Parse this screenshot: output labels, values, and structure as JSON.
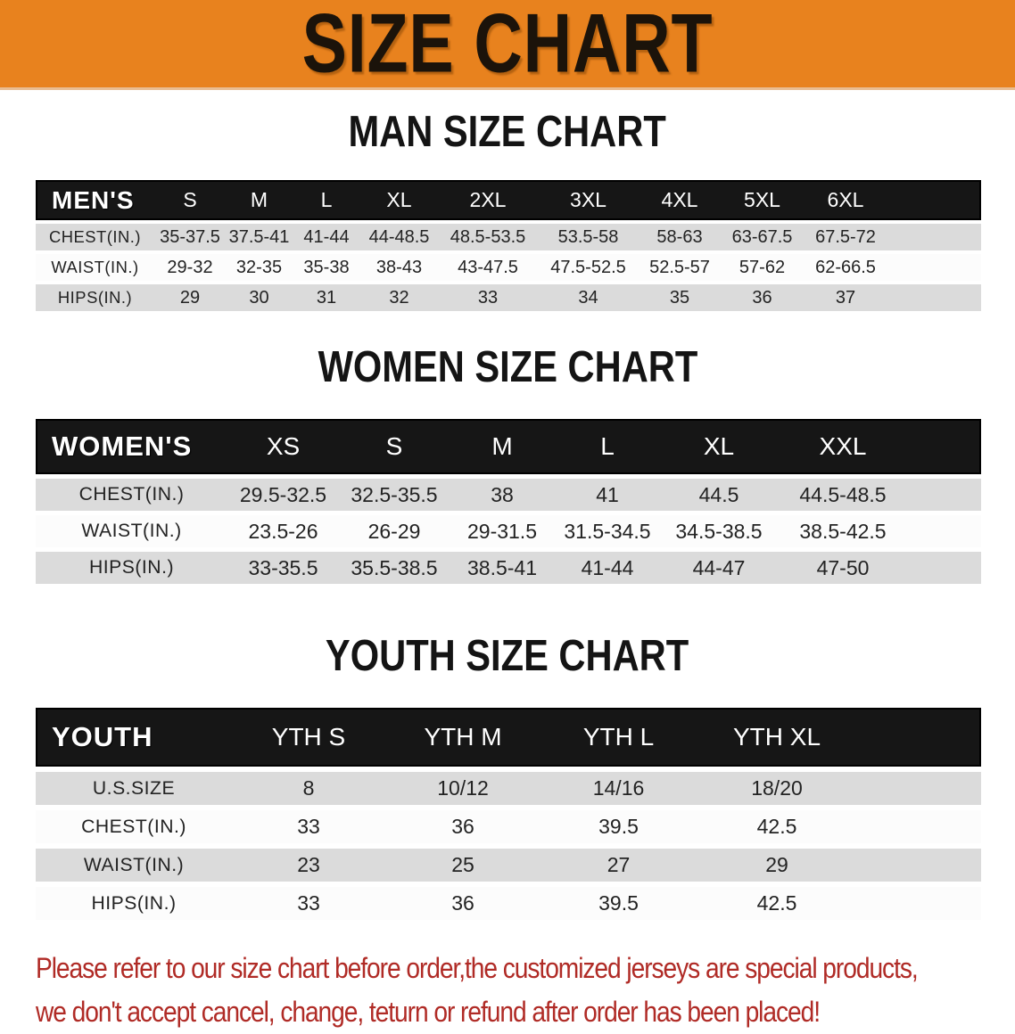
{
  "banner": {
    "title": "SIZE CHART",
    "bg_color": "#E8821E",
    "text_color": "#1B130A"
  },
  "sections": [
    {
      "heading": "MAN SIZE CHART",
      "table": {
        "header": {
          "label": "MEN'S",
          "sizes": [
            "S",
            "M",
            "L",
            "XL",
            "2XL",
            "3XL",
            "4XL",
            "5XL",
            "6XL"
          ]
        },
        "rows": [
          {
            "label": "CHEST(IN.)",
            "values": [
              "35-37.5",
              "37.5-41",
              "41-44",
              "44-48.5",
              "48.5-53.5",
              "53.5-58",
              "58-63",
              "63-67.5",
              "67.5-72"
            ]
          },
          {
            "label": "WAIST(IN.)",
            "values": [
              "29-32",
              "32-35",
              "35-38",
              "38-43",
              "43-47.5",
              "47.5-52.5",
              "52.5-57",
              "57-62",
              "62-66.5"
            ]
          },
          {
            "label": "HIPS(IN.)",
            "values": [
              "29",
              "30",
              "31",
              "32",
              "33",
              "34",
              "35",
              "36",
              "37"
            ]
          }
        ]
      }
    },
    {
      "heading": "WOMEN SIZE CHART",
      "table": {
        "header": {
          "label": "WOMEN'S",
          "sizes": [
            "XS",
            "S",
            "M",
            "L",
            "XL",
            "XXL"
          ]
        },
        "rows": [
          {
            "label": "CHEST(IN.)",
            "values": [
              "29.5-32.5",
              "32.5-35.5",
              "38",
              "41",
              "44.5",
              "44.5-48.5"
            ]
          },
          {
            "label": "WAIST(IN.)",
            "values": [
              "23.5-26",
              "26-29",
              "29-31.5",
              "31.5-34.5",
              "34.5-38.5",
              "38.5-42.5"
            ]
          },
          {
            "label": "HIPS(IN.)",
            "values": [
              "33-35.5",
              "35.5-38.5",
              "38.5-41",
              "41-44",
              "44-47",
              "47-50"
            ]
          }
        ]
      }
    },
    {
      "heading": "YOUTH SIZE CHART",
      "table": {
        "header": {
          "label": "YOUTH",
          "sizes": [
            "YTH S",
            "YTH M",
            "YTH L",
            "YTH XL"
          ]
        },
        "rows": [
          {
            "label": "U.S.SIZE",
            "values": [
              "8",
              "10/12",
              "14/16",
              "18/20"
            ]
          },
          {
            "label": "CHEST(IN.)",
            "values": [
              "33",
              "36",
              "39.5",
              "42.5"
            ]
          },
          {
            "label": "WAIST(IN.)",
            "values": [
              "23",
              "25",
              "27",
              "29"
            ]
          },
          {
            "label": "HIPS(IN.)",
            "values": [
              "33",
              "36",
              "39.5",
              "42.5"
            ]
          }
        ]
      }
    }
  ],
  "footer": {
    "line1": "Please refer to our size chart before order,the customized jerseys are special products,",
    "line2": "we don't accept cancel, change, teturn or refund after order has been placed!",
    "text_color": "#B02B26"
  },
  "style_colors": {
    "header_bar": "#161616",
    "row_gray": "#DBDBDB",
    "row_white": "#FCFCFC"
  }
}
